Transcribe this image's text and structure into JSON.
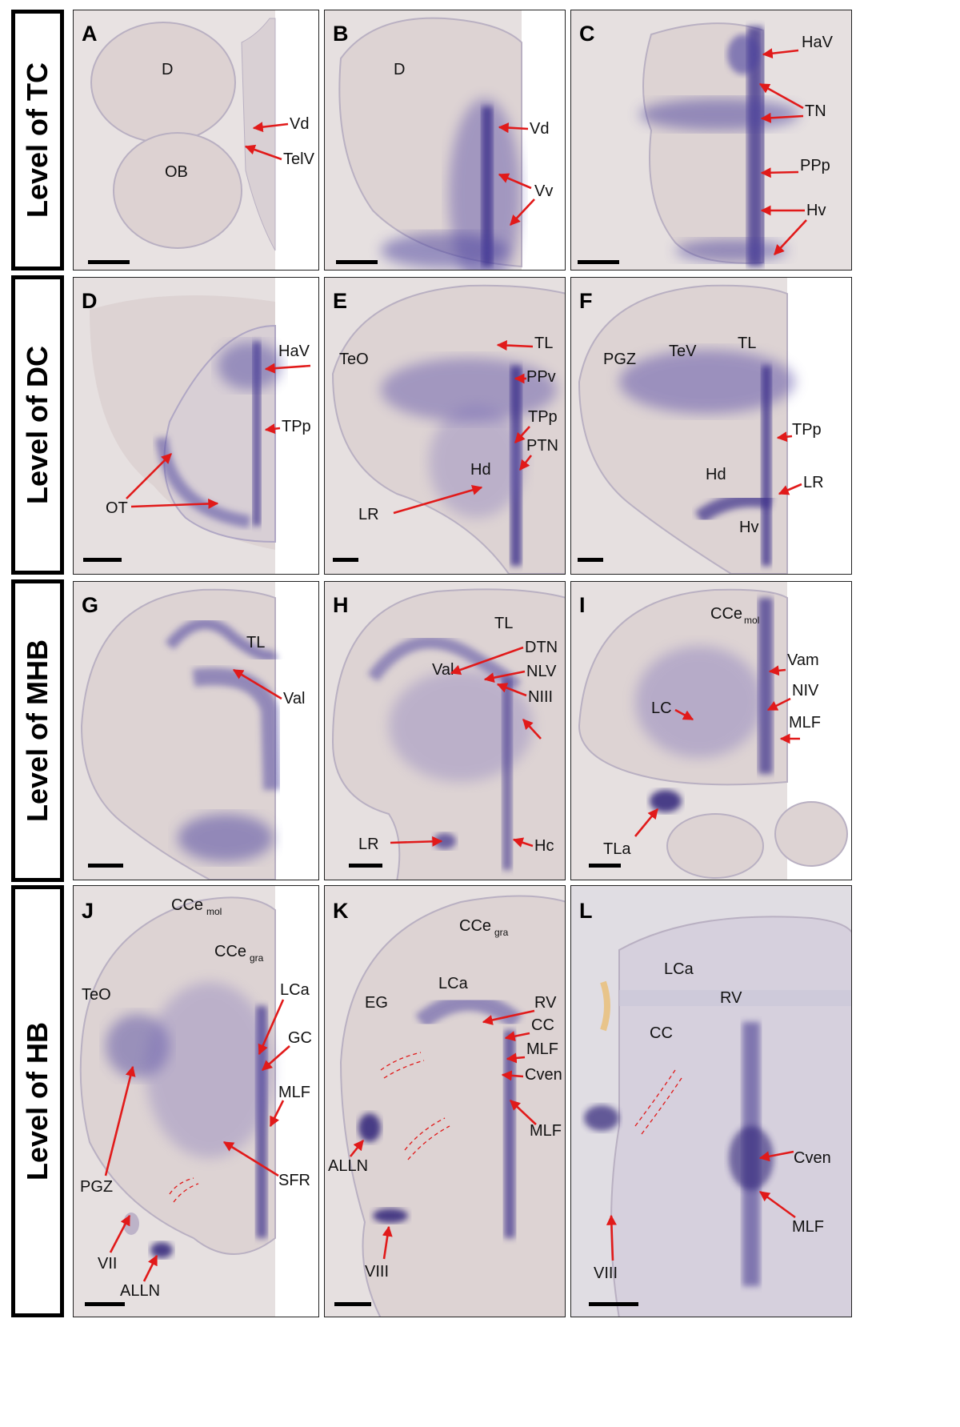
{
  "rows": [
    {
      "id": "tc",
      "label": "Level of TC"
    },
    {
      "id": "dc",
      "label": "Level of DC"
    },
    {
      "id": "mhb",
      "label": "Level of MHB"
    },
    {
      "id": "hb",
      "label": "Level of HB"
    }
  ],
  "panels": {
    "A": {
      "letter": "A",
      "labels": {
        "D": "D",
        "OB": "OB",
        "Vd": "Vd",
        "TelV": "TelV"
      }
    },
    "B": {
      "letter": "B",
      "labels": {
        "D": "D",
        "Vd": "Vd",
        "Vv": "Vv"
      }
    },
    "C": {
      "letter": "C",
      "labels": {
        "HaV": "HaV",
        "TN": "TN",
        "PPp": "PPp",
        "Hv": "Hv"
      }
    },
    "D": {
      "letter": "D",
      "labels": {
        "HaV": "HaV",
        "TPp": "TPp",
        "OT": "OT"
      }
    },
    "E": {
      "letter": "E",
      "labels": {
        "TeO": "TeO",
        "TL": "TL",
        "PPv": "PPv",
        "TPp": "TPp",
        "PTN": "PTN",
        "Hd": "Hd",
        "LR": "LR"
      }
    },
    "F": {
      "letter": "F",
      "labels": {
        "PGZ": "PGZ",
        "TeV": "TeV",
        "TL": "TL",
        "TPp": "TPp",
        "Hd": "Hd",
        "LR": "LR",
        "Hv": "Hv"
      }
    },
    "G": {
      "letter": "G",
      "labels": {
        "TL": "TL",
        "Val": "Val"
      }
    },
    "H": {
      "letter": "H",
      "labels": {
        "TL": "TL",
        "Val": "Val",
        "DTN": "DTN",
        "NLV": "NLV",
        "NIII": "NIII",
        "LR": "LR",
        "Hc": "Hc"
      }
    },
    "I": {
      "letter": "I",
      "labels": {
        "CCe": "CCe",
        "mol": "mol",
        "Vam": "Vam",
        "NIV": "NIV",
        "MLF": "MLF",
        "LC": "LC",
        "TLa": "TLa"
      }
    },
    "J": {
      "letter": "J",
      "labels": {
        "CCe1": "CCe",
        "mol": "mol",
        "CCe2": "CCe",
        "gra": "gra",
        "TeO": "TeO",
        "LCa": "LCa",
        "GC": "GC",
        "MLF": "MLF",
        "PGZ": "PGZ",
        "SFR": "SFR",
        "VII": "VII",
        "ALLN": "ALLN"
      }
    },
    "K": {
      "letter": "K",
      "labels": {
        "CCe": "CCe",
        "gra": "gra",
        "EG": "EG",
        "LCa": "LCa",
        "RV": "RV",
        "CC": "CC",
        "MLF1": "MLF",
        "Cven": "Cven",
        "MLF2": "MLF",
        "ALLN": "ALLN",
        "VIII": "VIII"
      }
    },
    "L": {
      "letter": "L",
      "labels": {
        "LCa": "LCa",
        "RV": "RV",
        "CC": "CC",
        "Cven": "Cven",
        "MLF": "MLF",
        "VIII": "VIII"
      }
    }
  },
  "colors": {
    "stain": "#4a3f9e",
    "arrow": "#e11a1a",
    "tissue": "#ddd3d3",
    "background": "#e3dddd"
  }
}
